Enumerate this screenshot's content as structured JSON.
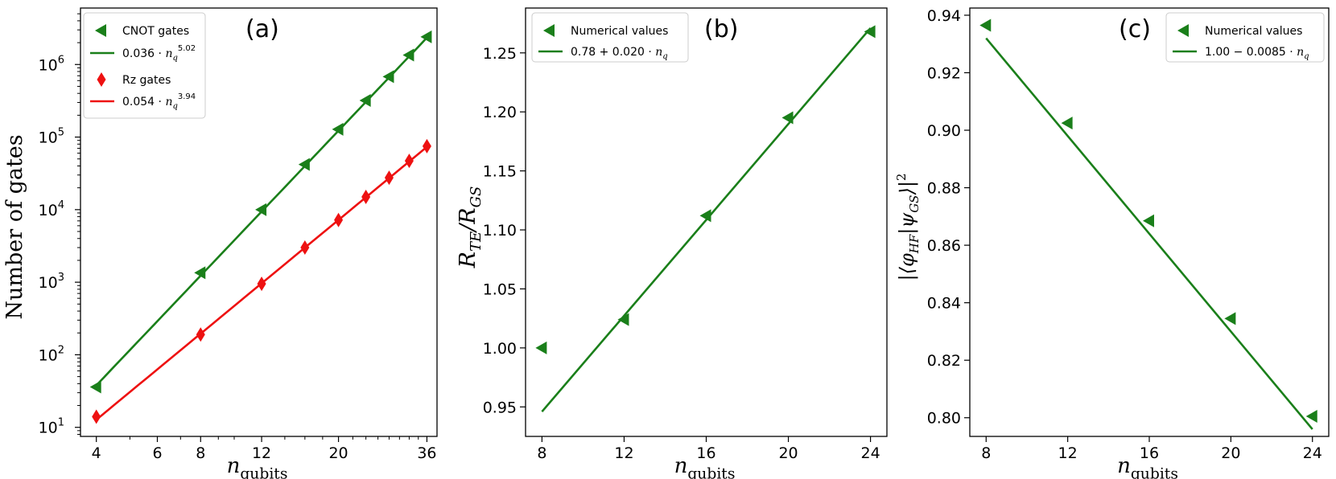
{
  "colors": {
    "green": "#1a7f1a",
    "red": "#ee1111",
    "axis": "#000000"
  },
  "chart_data": [
    {
      "type": "line",
      "panel_label": "(a)",
      "xscale": "log",
      "yscale": "log",
      "xlabel": "n_qubits",
      "ylabel": "Number of gates",
      "xlim": [
        3.6,
        38.5
      ],
      "ylim": [
        7.5,
        6000000
      ],
      "xticks": [
        4,
        6,
        8,
        12,
        20,
        36
      ],
      "yticks": [
        10,
        100,
        1000,
        10000,
        100000,
        1000000
      ],
      "ytick_labels": [
        {
          "base": "10",
          "exp": "1"
        },
        {
          "base": "10",
          "exp": "2"
        },
        {
          "base": "10",
          "exp": "3"
        },
        {
          "base": "10",
          "exp": "4"
        },
        {
          "base": "10",
          "exp": "5"
        },
        {
          "base": "10",
          "exp": "6"
        }
      ],
      "legend_position": "top-left",
      "series": [
        {
          "name": "CNOT gates",
          "kind": "scatter",
          "marker": "triangle-left",
          "color": "#1a7f1a",
          "x": [
            4,
            8,
            12,
            16,
            20,
            24,
            28,
            32,
            36
          ],
          "y": [
            36,
            1350,
            10000,
            42000,
            128000,
            320000,
            680000,
            1350000,
            2400000
          ]
        },
        {
          "name": "0.036 · n_q^5.02",
          "label_parts": [
            "0.036 · ",
            "n",
            "q",
            "5.02"
          ],
          "kind": "line",
          "color": "#1a7f1a",
          "coef": 0.036,
          "exponent": 5.02,
          "x_range": [
            4,
            36
          ]
        },
        {
          "name": "Rz gates",
          "kind": "scatter",
          "marker": "diamond",
          "color": "#ee1111",
          "x": [
            4,
            8,
            12,
            16,
            20,
            24,
            28,
            32,
            36
          ],
          "y": [
            14,
            190,
            950,
            3000,
            7200,
            15000,
            27500,
            47000,
            75000
          ]
        },
        {
          "name": "0.054 · n_q^3.94",
          "label_parts": [
            "0.054 · ",
            "n",
            "q",
            "3.94"
          ],
          "kind": "line",
          "color": "#ee1111",
          "coef": 0.054,
          "exponent": 3.94,
          "x_range": [
            4,
            36
          ]
        }
      ]
    },
    {
      "type": "line",
      "panel_label": "(b)",
      "xscale": "linear",
      "yscale": "linear",
      "xlabel": "n_qubits",
      "ylabel": "R_TE / R_GS",
      "xlim": [
        7.2,
        24.8
      ],
      "ylim": [
        0.925,
        1.288
      ],
      "xticks": [
        8,
        12,
        16,
        20,
        24
      ],
      "yticks": [
        0.95,
        1.0,
        1.05,
        1.1,
        1.15,
        1.2,
        1.25
      ],
      "ytick_format": 2,
      "legend_position": "top-left",
      "series": [
        {
          "name": "Numerical values",
          "kind": "scatter",
          "marker": "triangle-left",
          "color": "#1a7f1a",
          "x": [
            8,
            12,
            16,
            20,
            24
          ],
          "y": [
            1.0,
            1.024,
            1.112,
            1.195,
            1.268
          ]
        },
        {
          "name": "0.78 + 0.020 · n_q",
          "label_parts": [
            "0.78 + 0.020 · ",
            "n",
            "q",
            ""
          ],
          "kind": "line",
          "color": "#1a7f1a",
          "x_range": [
            8,
            24
          ],
          "line_y": [
            0.946,
            1.271
          ]
        }
      ]
    },
    {
      "type": "line",
      "panel_label": "(c)",
      "xscale": "linear",
      "yscale": "linear",
      "xlabel": "n_qubits",
      "ylabel": "|⟨φ_HF|ψ_GS⟩|^2",
      "xlim": [
        7.2,
        24.8
      ],
      "ylim": [
        0.7935,
        0.9425
      ],
      "xticks": [
        8,
        12,
        16,
        20,
        24
      ],
      "yticks": [
        0.8,
        0.82,
        0.84,
        0.86,
        0.88,
        0.9,
        0.92,
        0.94
      ],
      "ytick_format": 2,
      "legend_position": "top-right",
      "series": [
        {
          "name": "Numerical values",
          "kind": "scatter",
          "marker": "triangle-left",
          "color": "#1a7f1a",
          "x": [
            8,
            12,
            16,
            20,
            24
          ],
          "y": [
            0.9365,
            0.9025,
            0.8685,
            0.8345,
            0.8005
          ]
        },
        {
          "name": "1.00 − 0.0085 · n_q",
          "label_parts": [
            "1.00 − 0.0085 · ",
            "n",
            "q",
            ""
          ],
          "kind": "line",
          "color": "#1a7f1a",
          "coef": 1.0,
          "slope": -0.0085,
          "x_range": [
            8,
            24
          ]
        }
      ]
    }
  ]
}
